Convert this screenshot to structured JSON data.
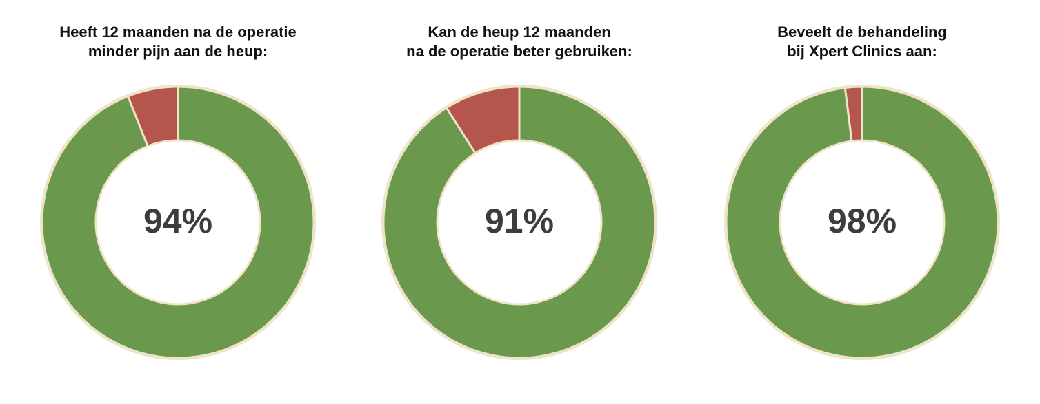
{
  "chart_data": [
    {
      "type": "donut",
      "title": [
        "Heeft 12 maanden na de operatie",
        "minder pijn aan de heup:"
      ],
      "values": [
        94,
        6
      ],
      "value_labels": [
        "94%",
        null
      ],
      "colors": [
        "#6a994e",
        "#b5564d"
      ]
    },
    {
      "type": "donut",
      "title": [
        "Kan de heup 12 maanden",
        "na de operatie beter gebruiken:"
      ],
      "values": [
        91,
        9
      ],
      "value_labels": [
        "91%",
        null
      ],
      "colors": [
        "#6a994e",
        "#b5564d"
      ]
    },
    {
      "type": "donut",
      "title": [
        "Beveelt de behandeling",
        "bij Xpert Clinics aan:"
      ],
      "values": [
        98,
        2
      ],
      "value_labels": [
        "98%",
        null
      ],
      "colors": [
        "#6a994e",
        "#b5564d"
      ]
    }
  ]
}
